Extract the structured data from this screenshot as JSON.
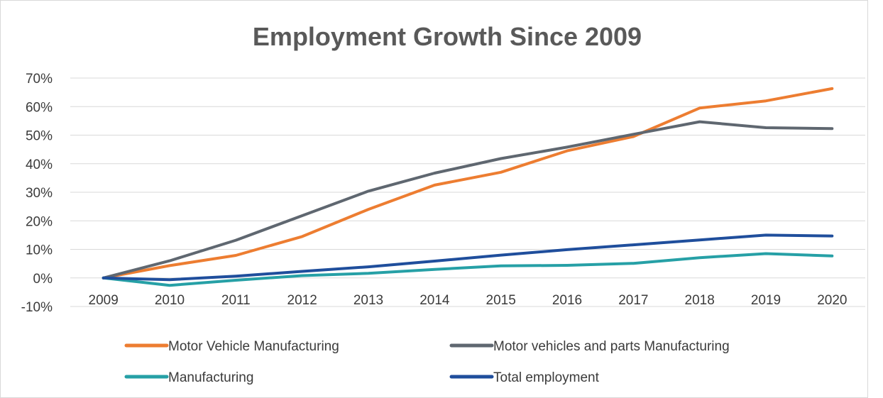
{
  "chart_data": {
    "type": "line",
    "title": "Employment Growth Since 2009",
    "xlabel": "",
    "ylabel": "",
    "categories": [
      "2009",
      "2010",
      "2011",
      "2012",
      "2013",
      "2014",
      "2015",
      "2016",
      "2017",
      "2018",
      "2019",
      "2020"
    ],
    "ylim": [
      -10,
      70
    ],
    "y_ticks": [
      -10,
      0,
      10,
      20,
      30,
      40,
      50,
      60,
      70
    ],
    "y_tick_labels": [
      "-10%",
      "0%",
      "10%",
      "20%",
      "30%",
      "40%",
      "50%",
      "60%",
      "70%"
    ],
    "grid": true,
    "legend_position": "bottom",
    "series": [
      {
        "name": "Motor Vehicle Manufacturing",
        "color": "#ED7D31",
        "values": [
          0,
          4.3,
          7.9,
          14.5,
          24.0,
          32.5,
          37.0,
          44.5,
          49.5,
          59.5,
          62.0,
          66.3
        ]
      },
      {
        "name": "Motor vehicles and parts Manufacturing",
        "color": "#5F6770",
        "values": [
          0,
          6.0,
          13.2,
          21.8,
          30.4,
          36.7,
          41.8,
          45.8,
          50.3,
          54.7,
          52.6,
          52.3
        ]
      },
      {
        "name": "Manufacturing",
        "color": "#26A0A6",
        "values": [
          0,
          -2.6,
          -0.8,
          0.8,
          1.6,
          3.0,
          4.2,
          4.4,
          5.1,
          7.1,
          8.5,
          7.7
        ]
      },
      {
        "name": "Total employment",
        "color": "#1F4E9C",
        "values": [
          0,
          -0.6,
          0.6,
          2.3,
          3.9,
          5.9,
          8.0,
          9.9,
          11.6,
          13.3,
          15.0,
          14.7
        ]
      }
    ]
  }
}
